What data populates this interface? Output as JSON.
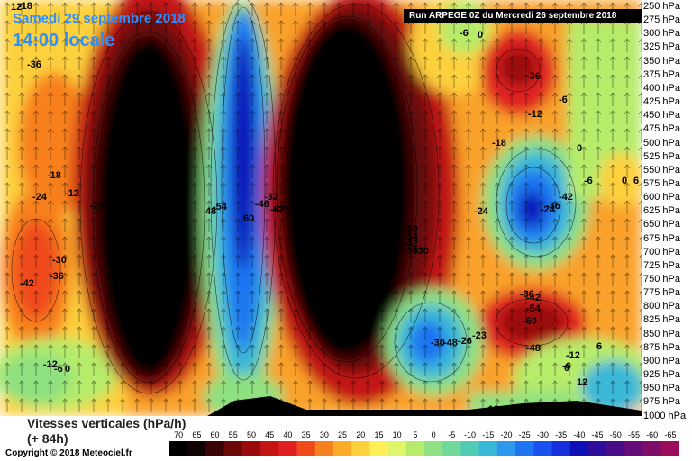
{
  "header": {
    "corner_value": "12",
    "date": "Samedi 29 septembre 2018",
    "time": "14:00 locale",
    "run": "Run ARPEGE 0Z du Mercredi 26 septembre 2018"
  },
  "chart_data": {
    "type": "heatmap",
    "title": "Vitesses verticales (hPa/h)",
    "subtitle": "(+ 84h)",
    "ylabel_levels": [
      "250 hPa",
      "275 hPa",
      "300 hPa",
      "325 hPa",
      "350 hPa",
      "375 hPa",
      "400 hPa",
      "425 hPa",
      "450 hPa",
      "475 hPa",
      "500 hPa",
      "525 hPa",
      "550 hPa",
      "575 hPa",
      "600 hPa",
      "625 hPa",
      "650 hPa",
      "675 hPa",
      "700 hPa",
      "725 hPa",
      "750 hPa",
      "775 hPa",
      "800 hPa",
      "825 hPa",
      "850 hPa",
      "875 hPa",
      "900 hPa",
      "925 hPa",
      "950 hPa",
      "975 hPa",
      "1000 hPa"
    ],
    "legend_values": [
      "70",
      "65",
      "60",
      "55",
      "50",
      "45",
      "40",
      "35",
      "30",
      "25",
      "20",
      "15",
      "10",
      "5",
      "0",
      "-5",
      "-10",
      "-15",
      "-20",
      "-25",
      "-30",
      "-35",
      "-40",
      "-45",
      "-50",
      "-55",
      "-60",
      "-65"
    ],
    "legend_colors": [
      "#000000",
      "#120404",
      "#3a0505",
      "#6b0808",
      "#9b0a0a",
      "#c41414",
      "#e02020",
      "#ef4a1a",
      "#f7801e",
      "#fbaa2a",
      "#fdd03e",
      "#fff05a",
      "#dff56a",
      "#b6ec6a",
      "#8fe080",
      "#6fd89a",
      "#50ccb6",
      "#3ab8d8",
      "#2c98ee",
      "#1f74f2",
      "#1a52f0",
      "#1530dc",
      "#1010b8",
      "#300c9c",
      "#4a0c88",
      "#660c78",
      "#800c6a",
      "#9a0c5c"
    ],
    "contour_labels": [
      "-36",
      "-18",
      "-12",
      "-24",
      "-30",
      "-42",
      "-36",
      "-12",
      "-6",
      "0",
      "-30",
      "48",
      "-54",
      "60",
      "-48",
      "-32",
      "-62",
      "-23",
      "-60",
      "-54",
      "-42",
      "-36",
      "-30",
      "-24",
      "-30",
      "-48",
      "-26",
      "-23",
      "-6",
      "0",
      "-36",
      "-12",
      "-6",
      "-18",
      "0",
      "-24",
      "-36",
      "-42",
      "-6",
      "0",
      "6",
      "-36",
      "-42",
      "-54",
      "-60",
      "-48",
      "-12",
      "-6",
      "0",
      "6",
      "12",
      "-18",
      "-24",
      "-18"
    ],
    "copyright": "Copyright © 2018 Meteociel.fr"
  }
}
